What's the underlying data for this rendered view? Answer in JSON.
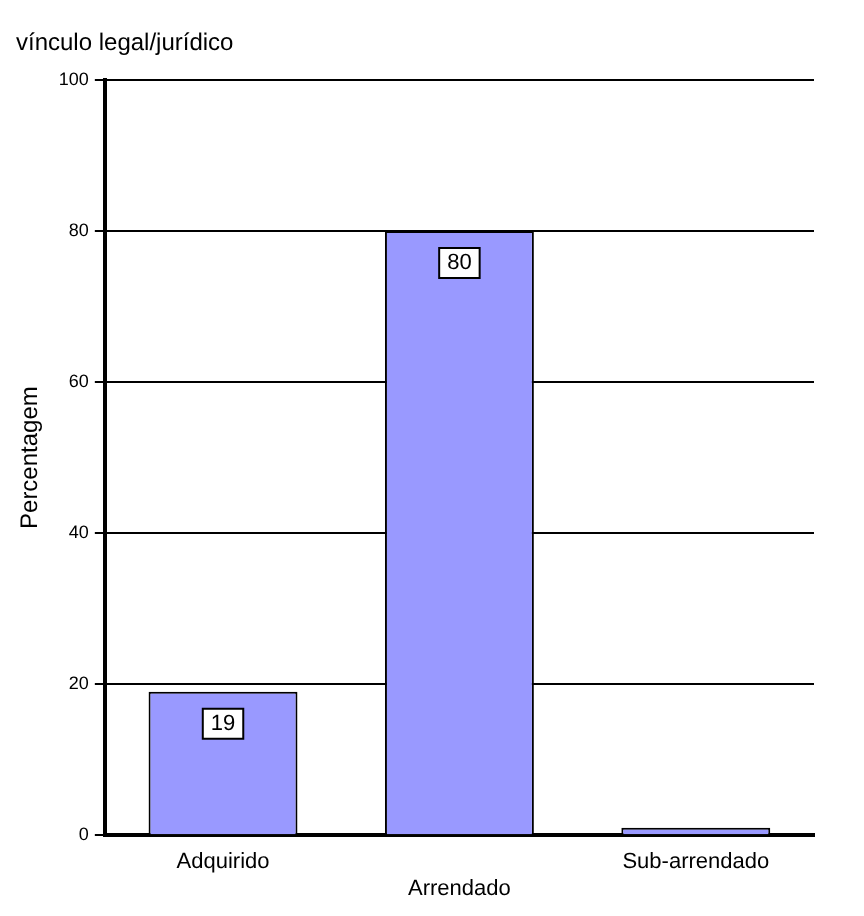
{
  "chart_data": {
    "type": "bar",
    "title": "vínculo legal/jurídico",
    "ylabel": "Percentagem",
    "categories": [
      "Adquirido",
      "Arrendado",
      "Sub-arrendado"
    ],
    "values": [
      19,
      80,
      1
    ],
    "value_labels": [
      "19",
      "80",
      null
    ],
    "color": "#9999ff",
    "ylim": [
      0,
      100
    ],
    "yticks": [
      0,
      20,
      40,
      60,
      80,
      100
    ],
    "grid": "y",
    "legend": false
  }
}
